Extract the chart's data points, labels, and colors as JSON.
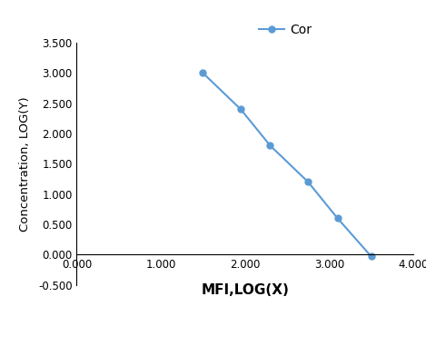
{
  "x": [
    1.5,
    1.95,
    2.3,
    2.75,
    3.1,
    3.5
  ],
  "y": [
    3.0,
    2.4,
    1.8,
    1.2,
    0.6,
    -0.03
  ],
  "line_color": "#5B9BD5",
  "marker_color": "#5B9BD5",
  "marker_style": "o",
  "marker_size": 5,
  "line_width": 1.5,
  "legend_label": "Cor",
  "xlabel": "MFI,LOG(X)",
  "ylabel": "Concentration, LOG(Y)",
  "xlim": [
    0.0,
    4.0
  ],
  "ylim": [
    -0.5,
    3.5
  ],
  "xticks": [
    0.0,
    1.0,
    2.0,
    3.0,
    4.0
  ],
  "yticks": [
    -0.5,
    0.0,
    0.5,
    1.0,
    1.5,
    2.0,
    2.5,
    3.0,
    3.5
  ],
  "xlabel_fontsize": 11,
  "ylabel_fontsize": 9.5,
  "tick_fontsize": 8.5,
  "legend_fontsize": 10,
  "background_color": "#ffffff"
}
